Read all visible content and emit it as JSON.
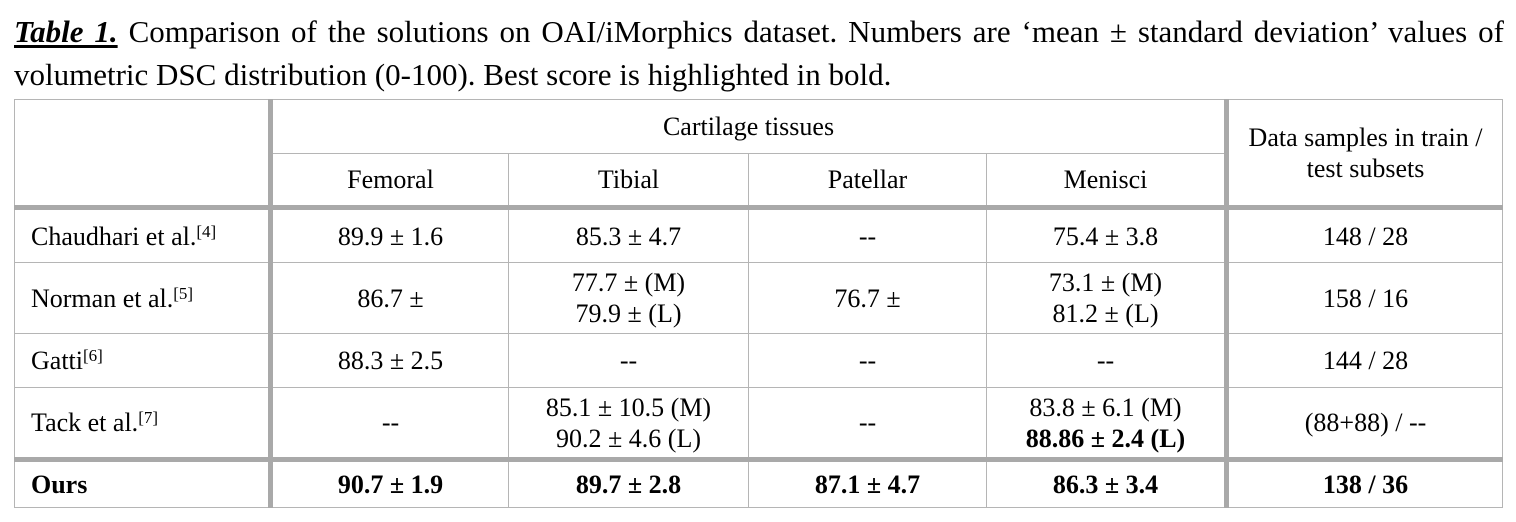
{
  "caption": {
    "label": "Table 1.",
    "text": "Comparison of the solutions on OAI/iMorphics dataset. Numbers are ‘mean ± standard deviation’ values of volumetric DSC distribution (0-100). Best score is highlighted in bold."
  },
  "header": {
    "group": "Cartilage tissues",
    "columns": [
      "Femoral",
      "Tibial",
      "Patellar",
      "Menisci"
    ],
    "samples": "Data samples in train / test subsets"
  },
  "rows": [
    {
      "method": "Chaudhari et al.",
      "ref": "[4]",
      "femoral": "89.9 ± 1.6",
      "tibial": "85.3 ± 4.7",
      "patellar": "--",
      "menisci": "75.4 ± 3.8",
      "samples": "148 / 28"
    },
    {
      "method": "Norman et al.",
      "ref": "[5]",
      "femoral": "86.7 ±",
      "tibial_1": "77.7 ± (M)",
      "tibial_2": "79.9 ± (L)",
      "patellar": "76.7 ±",
      "menisci_1": "73.1 ± (M)",
      "menisci_2": "81.2 ± (L)",
      "samples": "158 / 16"
    },
    {
      "method": "Gatti",
      "ref": "[6]",
      "femoral": "88.3 ± 2.5",
      "tibial": "--",
      "patellar": "--",
      "menisci": "--",
      "samples": "144 / 28"
    },
    {
      "method": "Tack et al.",
      "ref": "[7]",
      "femoral": "--",
      "tibial_1": "85.1 ± 10.5 (M)",
      "tibial_2": "90.2 ± 4.6 (L)",
      "patellar": "--",
      "menisci_1": "83.8 ± 6.1 (M)",
      "menisci_2": "88.86 ± 2.4 (L)",
      "samples": "(88+88) / --"
    },
    {
      "method": "Ours",
      "femoral": "90.7 ± 1.9",
      "tibial": "89.7 ± 2.8",
      "patellar": "87.1 ± 4.7",
      "menisci": "86.3 ± 3.4",
      "samples": "138 / 36"
    }
  ]
}
